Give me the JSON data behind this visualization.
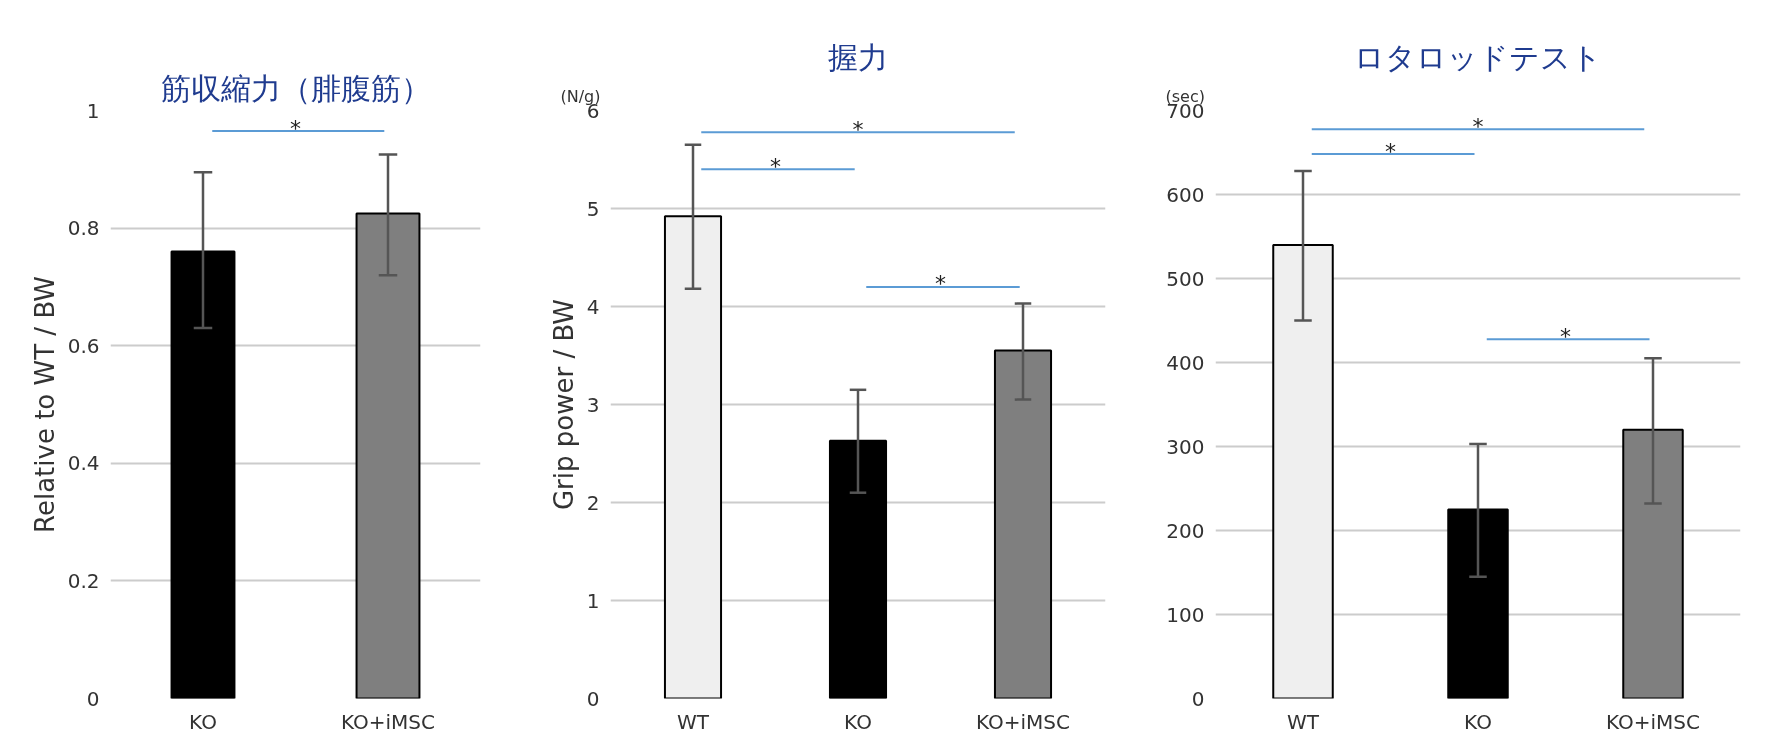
{
  "chart_data": [
    {
      "type": "bar",
      "title": "筋収縮力（腓腹筋）",
      "ylabel": "Relative to WT / BW",
      "categories": [
        "KO",
        "KO+iMSC"
      ],
      "values": [
        0.76,
        0.825
      ],
      "colors": [
        "#000000",
        "#7f7f7f"
      ],
      "errors": [
        [
          0.63,
          0.895
        ],
        [
          0.72,
          0.925
        ]
      ],
      "ylim": [
        0,
        1
      ],
      "yticks": [
        0,
        0.2,
        0.4,
        0.6,
        0.8,
        1
      ],
      "grid": "y",
      "annotations": [
        "*"
      ]
    },
    {
      "type": "bar",
      "title": "握力",
      "ylabel": "Grip power / BW",
      "categories": [
        "WT",
        "KO",
        "KO+iMSC"
      ],
      "values": [
        4.92,
        2.63,
        3.55
      ],
      "colors": [
        "#efefef",
        "#000000",
        "#7f7f7f"
      ],
      "errors": [
        [
          4.18,
          5.65
        ],
        [
          2.1,
          3.15
        ],
        [
          3.05,
          4.03
        ]
      ],
      "ylim": [
        0,
        6
      ],
      "yticks": [
        0,
        1,
        2,
        3,
        4,
        5,
        6
      ],
      "grid": "y",
      "annotations": [
        "(N/g)",
        "*",
        "*",
        "*"
      ]
    },
    {
      "type": "bar",
      "title": "ロタロッドテスト",
      "categories": [
        "WT",
        "KO",
        "KO+iMSC"
      ],
      "values": [
        540,
        225,
        320
      ],
      "colors": [
        "#efefef",
        "#000000",
        "#7f7f7f"
      ],
      "errors": [
        [
          450,
          628
        ],
        [
          145,
          303
        ],
        [
          232,
          405
        ]
      ],
      "ylim": [
        0,
        700
      ],
      "yticks": [
        0,
        100,
        200,
        300,
        400,
        500,
        600,
        700
      ],
      "grid": "y",
      "annotations": [
        "(sec)",
        "*",
        "*",
        "*"
      ]
    }
  ]
}
